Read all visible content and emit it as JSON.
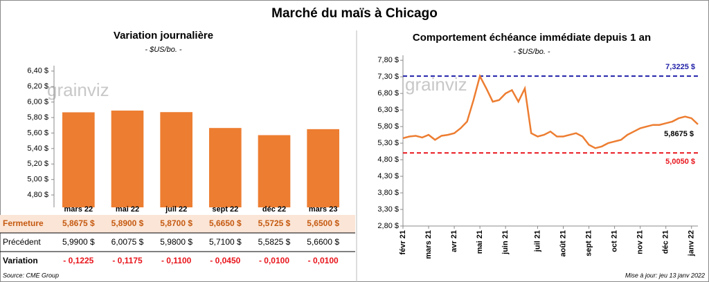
{
  "header": {
    "title": "Marché du maïs à Chicago",
    "logo": "grainviz"
  },
  "chart_data": [
    {
      "type": "bar",
      "title": "Variation journalière",
      "subtitle": "- $US/bo. -",
      "color": "#ed7d31",
      "categories": [
        "mars 22",
        "mai 22",
        "juil 22",
        "sept 22",
        "déc 22",
        "mars 23"
      ],
      "values": [
        5.8675,
        5.89,
        5.87,
        5.665,
        5.5725,
        5.65
      ],
      "value_labels": [
        "5,8675  $",
        "5,8900  $",
        "5,8700  $",
        "5,6650  $",
        "5,5725  $",
        "5,6500  $"
      ],
      "ylim": [
        4.64,
        6.47
      ],
      "yticks": [
        {
          "value": 4.8,
          "label": "4,80 $"
        },
        {
          "value": 5.0,
          "label": "5,00 $"
        },
        {
          "value": 5.2,
          "label": "5,20 $"
        },
        {
          "value": 5.4,
          "label": "5,40 $"
        },
        {
          "value": 5.6,
          "label": "5,60 $"
        },
        {
          "value": 5.8,
          "label": "5,80 $"
        },
        {
          "value": 6.0,
          "label": "6,00 $"
        },
        {
          "value": 6.2,
          "label": "6,20 $"
        },
        {
          "value": 6.4,
          "label": "6,40 $"
        }
      ],
      "grid": false
    },
    {
      "type": "line",
      "title": "Comportement  échéance immédiate  depuis 1 an",
      "subtitle": "- $US/bo. -",
      "categories": [
        "févr 21",
        null,
        null,
        null,
        "mars 21",
        null,
        null,
        null,
        "avr 21",
        null,
        null,
        null,
        "mai 21",
        null,
        null,
        null,
        "juin 21",
        null,
        null,
        null,
        null,
        "juil 21",
        null,
        null,
        null,
        "août 21",
        null,
        null,
        null,
        "sept 21",
        null,
        null,
        null,
        "oct 21",
        null,
        null,
        null,
        "nov 21",
        null,
        null,
        null,
        "déc 21",
        null,
        null,
        null,
        "janv 22",
        null
      ],
      "series": [
        {
          "name": "Échéance immédiate",
          "color": "#ed7d31",
          "values": [
            5.45,
            5.5,
            5.52,
            5.47,
            5.55,
            5.4,
            5.52,
            5.55,
            5.6,
            5.75,
            5.95,
            6.6,
            7.32,
            6.95,
            6.55,
            6.6,
            6.8,
            6.9,
            6.55,
            6.95,
            5.6,
            5.5,
            5.55,
            5.65,
            5.5,
            5.5,
            5.55,
            5.6,
            5.5,
            5.25,
            5.15,
            5.2,
            5.3,
            5.35,
            5.4,
            5.55,
            5.65,
            5.75,
            5.8,
            5.85,
            5.85,
            5.9,
            5.95,
            6.05,
            6.1,
            6.05,
            5.8675
          ]
        }
      ],
      "reference_lines": [
        {
          "value": 7.3225,
          "label": "7,3225 $",
          "color": "#1f1fa8"
        },
        {
          "value": 5.005,
          "label": "5,0050 $",
          "color": "#e8141b"
        }
      ],
      "end_label": {
        "value": 5.8675,
        "label": "5,8675 $"
      },
      "ylim": [
        2.8,
        7.95
      ],
      "yticks": [
        {
          "value": 2.8,
          "label": "2,80 $"
        },
        {
          "value": 3.3,
          "label": "3,30 $"
        },
        {
          "value": 3.8,
          "label": "3,80 $"
        },
        {
          "value": 4.3,
          "label": "4,30 $"
        },
        {
          "value": 4.8,
          "label": "4,80 $"
        },
        {
          "value": 5.3,
          "label": "5,30 $"
        },
        {
          "value": 5.8,
          "label": "5,80 $"
        },
        {
          "value": 6.3,
          "label": "6,30 $"
        },
        {
          "value": 6.8,
          "label": "6,80 $"
        },
        {
          "value": 7.3,
          "label": "7,30 $"
        },
        {
          "value": 7.8,
          "label": "7,80 $"
        }
      ],
      "grid": false
    }
  ],
  "table": {
    "closing_label": "Fermeture",
    "rows": [
      {
        "label": "Précédent",
        "cells": [
          "5,9900  $",
          "6,0075  $",
          "5,9800  $",
          "5,7100  $",
          "5,5825  $",
          "5,6600  $"
        ]
      },
      {
        "label": "Variation",
        "cells": [
          "- 0,1225",
          "- 0,1175",
          "- 0,1100",
          "- 0,0450",
          "- 0,0100",
          "- 0,0100"
        ]
      }
    ]
  },
  "footer": {
    "source": "Source: CME Group",
    "updated": "Mise à jour: jeu 13 janv 2022"
  }
}
